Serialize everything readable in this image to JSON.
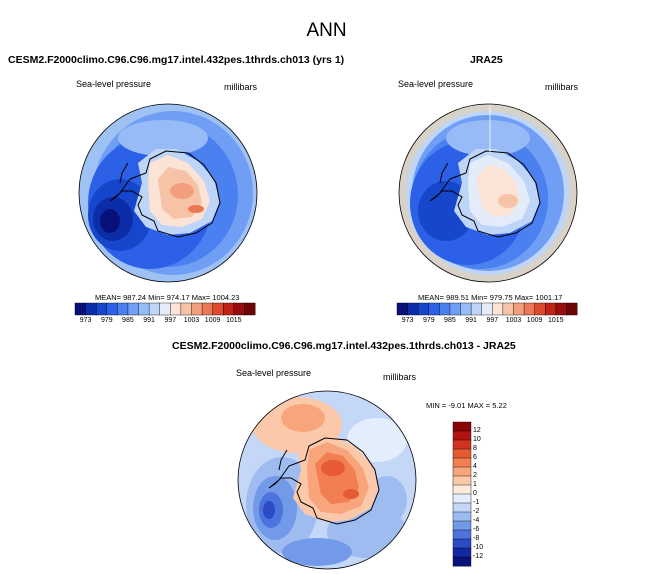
{
  "page": {
    "title": "ANN"
  },
  "panels": [
    {
      "title": "CESM2.F2000climo.C96.C96.mg17.intel.432pes.1thrds.ch013 (yrs 1)",
      "variable": "Sea-level pressure",
      "units": "millibars",
      "stats": "MEAN= 987.24   Min= 974.17   Max= 1004.23"
    },
    {
      "title": "JRA25",
      "variable": "Sea-level pressure",
      "units": "millibars",
      "stats": "MEAN= 989.51   Min= 979.75   Max= 1001.17"
    },
    {
      "title": "CESM2.F2000climo.C96.C96.mg17.intel.432pes.1thrds.ch013 - JRA25",
      "variable": "Sea-level pressure",
      "units": "millibars",
      "stats": "MIN =  -9.01 MAX =   5.22"
    }
  ],
  "colorbar_abs": {
    "labels": [
      "973",
      "979",
      "985",
      "991",
      "997",
      "1003",
      "1009",
      "1015"
    ],
    "colors": [
      "#08107a",
      "#0b2ea8",
      "#1646cc",
      "#2c60e6",
      "#4a80f0",
      "#6f9ef4",
      "#96bbf6",
      "#bed5f8",
      "#e4ecfa",
      "#fbe4d6",
      "#f7c3a6",
      "#f39e7c",
      "#ec7754",
      "#de4a2e",
      "#c22317",
      "#980c0c",
      "#6e0404"
    ]
  },
  "colorbar_diff": {
    "labels": [
      "12",
      "10",
      "8",
      "6",
      "4",
      "2",
      "1",
      "0",
      "-1",
      "-2",
      "-4",
      "-6",
      "-8",
      "-10",
      "-12"
    ],
    "colors": [
      "#8a0606",
      "#b11410",
      "#d0341e",
      "#e65a34",
      "#f27f52",
      "#f8a57b",
      "#fbc9aa",
      "#fdebdc",
      "#e4edfb",
      "#c4d7f7",
      "#9fbcf1",
      "#7399e9",
      "#4d73dc",
      "#2b4cc4",
      "#1428a2",
      "#0a127a"
    ]
  }
}
